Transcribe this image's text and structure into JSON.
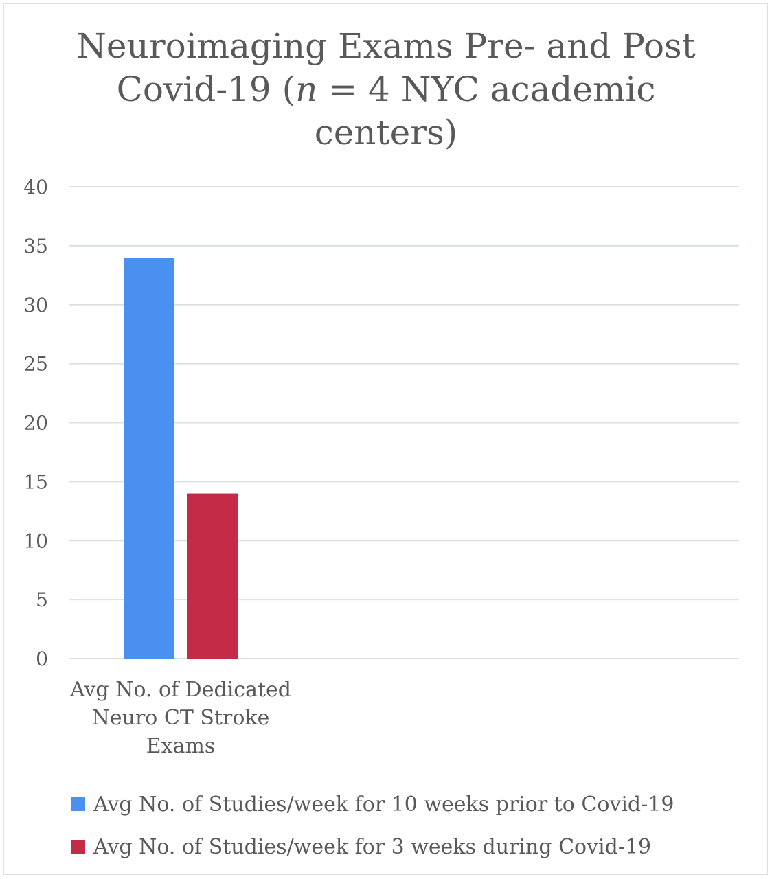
{
  "title": {
    "line1": "Neuroimaging Exams Pre- and Post",
    "line2_pre": "Covid-19 (",
    "line2_italic": "n",
    "line2_post": " = 4 NYC academic",
    "line3": "centers)"
  },
  "chart_data": {
    "type": "bar",
    "title": "Neuroimaging Exams Pre- and Post Covid-19 (n = 4 NYC academic centers)",
    "categories": [
      "Avg No. of Dedicated Neuro CT Stroke Exams"
    ],
    "category_lines": [
      [
        "Avg No. of Dedicated",
        "Neuro CT Stroke",
        "Exams"
      ]
    ],
    "series": [
      {
        "name": "Avg No. of Studies/week for 10 weeks prior to Covid-19",
        "values": [
          34
        ],
        "color": "#4a90f0"
      },
      {
        "name": "Avg No. of Studies/week for 3 weeks during Covid-19",
        "values": [
          14
        ],
        "color": "#c42b47"
      }
    ],
    "ylim": [
      0,
      40
    ],
    "yticks": [
      0,
      5,
      10,
      15,
      20,
      25,
      30,
      35,
      40
    ],
    "grid": true,
    "legend_position": "bottom",
    "xlabel": "",
    "ylabel": ""
  }
}
